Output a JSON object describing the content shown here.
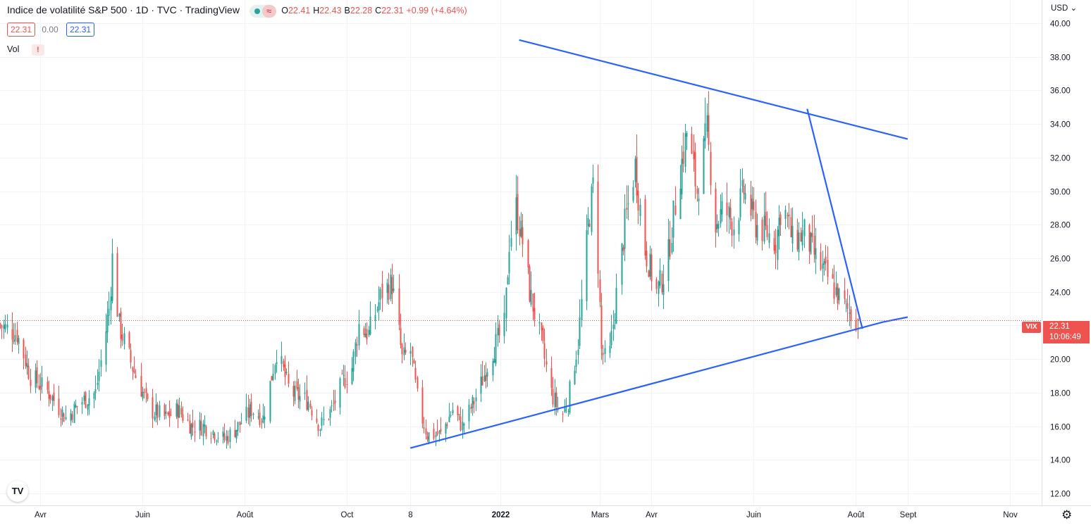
{
  "header": {
    "title": "Indice de volatilité S&P 500 · 1D · TVC · TradingView",
    "ohlc": [
      {
        "k": "O",
        "v": "22.41"
      },
      {
        "k": "H",
        "v": "22.43"
      },
      {
        "k": "B",
        "v": "22.28"
      },
      {
        "k": "C",
        "v": "22.31"
      },
      {
        "k": "",
        "v": "+0.99 (+4.64%)"
      }
    ],
    "sell_price": "22.31",
    "spread": "0.00",
    "buy_price": "22.31",
    "vol_label": "Vol",
    "vol_warning": "!",
    "currency": "USD ⌄",
    "logo_text": "TV"
  },
  "price_tag": {
    "symbol": "VIX",
    "price": "22.31",
    "countdown": "10:06:49"
  },
  "colors": {
    "up": "#26a69a",
    "down": "#ef5350",
    "trendline": "#2962ff",
    "grid": "#f0f3fa",
    "last_price": "#ef5350"
  },
  "chart_data": {
    "type": "candlestick",
    "symbol": "VIX",
    "timeframe": "1D",
    "y_axis": {
      "range": [
        11.5,
        40.5
      ],
      "ticks": [
        12,
        14,
        16,
        18,
        20,
        22,
        24,
        26,
        28,
        30,
        32,
        34,
        36,
        38,
        40
      ],
      "tick_labels": [
        "12.00",
        "14.00",
        "16.00",
        "18.00",
        "20.00",
        "22.00",
        "24.00",
        "26.00",
        "28.00",
        "30.00",
        "32.00",
        "34.00",
        "36.00",
        "38.00",
        "40.00"
      ]
    },
    "x_axis": {
      "range": [
        "2021-03-08",
        "2022-11-20"
      ],
      "ticks": [
        {
          "date": "2021-04-01",
          "label": "Avr"
        },
        {
          "date": "2021-06-01",
          "label": "Juin"
        },
        {
          "date": "2021-08-01",
          "label": "Août"
        },
        {
          "date": "2021-10-01",
          "label": "Oct"
        },
        {
          "date": "2021-11-08",
          "label": "8"
        },
        {
          "date": "2022-01-01",
          "label": "2022"
        },
        {
          "date": "2022-03-01",
          "label": "Mars"
        },
        {
          "date": "2022-04-01",
          "label": "Avr"
        },
        {
          "date": "2022-06-01",
          "label": "Juin"
        },
        {
          "date": "2022-08-01",
          "label": "Août"
        },
        {
          "date": "2022-09-01",
          "label": "Sept"
        },
        {
          "date": "2022-11-01",
          "label": "Nov"
        }
      ]
    },
    "close_path": [
      [
        "2021-03-08",
        22.0
      ],
      [
        "2021-03-18",
        21.5
      ],
      [
        "2021-03-26",
        19.0
      ],
      [
        "2021-04-06",
        18.0
      ],
      [
        "2021-04-16",
        16.5
      ],
      [
        "2021-04-26",
        17.5
      ],
      [
        "2021-05-04",
        18.0
      ],
      [
        "2021-05-12",
        23.0
      ],
      [
        "2021-05-14",
        26.0
      ],
      [
        "2021-05-18",
        22.0
      ],
      [
        "2021-05-26",
        19.5
      ],
      [
        "2021-06-05",
        17.0
      ],
      [
        "2021-06-15",
        16.5
      ],
      [
        "2021-06-22",
        17.0
      ],
      [
        "2021-06-30",
        16.0
      ],
      [
        "2021-07-08",
        16.0
      ],
      [
        "2021-07-16",
        15.5
      ],
      [
        "2021-07-20",
        15.2
      ],
      [
        "2021-07-28",
        16.0
      ],
      [
        "2021-08-05",
        17.0
      ],
      [
        "2021-08-12",
        16.5
      ],
      [
        "2021-08-20",
        20.5
      ],
      [
        "2021-08-28",
        18.0
      ],
      [
        "2021-09-08",
        17.5
      ],
      [
        "2021-09-15",
        16.0
      ],
      [
        "2021-09-22",
        17.0
      ],
      [
        "2021-09-28",
        18.5
      ],
      [
        "2021-10-04",
        19.5
      ],
      [
        "2021-10-08",
        22.0
      ],
      [
        "2021-10-14",
        21.5
      ],
      [
        "2021-10-22",
        24.0
      ],
      [
        "2021-10-28",
        24.5
      ],
      [
        "2021-11-03",
        20.0
      ],
      [
        "2021-11-08",
        20.5
      ],
      [
        "2021-11-13",
        17.0
      ],
      [
        "2021-11-18",
        15.5
      ],
      [
        "2021-11-26",
        15.5
      ],
      [
        "2021-12-03",
        17.0
      ],
      [
        "2021-12-09",
        16.0
      ],
      [
        "2021-12-16",
        17.5
      ],
      [
        "2021-12-20",
        18.5
      ],
      [
        "2021-12-27",
        20.5
      ],
      [
        "2022-01-03",
        22.0
      ],
      [
        "2022-01-06",
        27.0
      ],
      [
        "2022-01-10",
        29.0
      ],
      [
        "2022-01-14",
        27.0
      ],
      [
        "2022-01-18",
        24.0
      ],
      [
        "2022-01-24",
        21.5
      ],
      [
        "2022-01-31",
        18.0
      ],
      [
        "2022-02-06",
        16.5
      ],
      [
        "2022-02-10",
        17.5
      ],
      [
        "2022-02-16",
        21.0
      ],
      [
        "2022-02-22",
        28.0
      ],
      [
        "2022-02-26",
        31.0
      ],
      [
        "2022-03-02",
        20.5
      ],
      [
        "2022-03-06",
        19.5
      ],
      [
        "2022-03-10",
        23.0
      ],
      [
        "2022-03-16",
        28.0
      ],
      [
        "2022-03-22",
        31.5
      ],
      [
        "2022-03-28",
        26.5
      ],
      [
        "2022-04-04",
        24.0
      ],
      [
        "2022-04-10",
        25.5
      ],
      [
        "2022-04-16",
        30.0
      ],
      [
        "2022-04-22",
        33.5
      ],
      [
        "2022-04-28",
        30.0
      ],
      [
        "2022-05-04",
        33.5
      ],
      [
        "2022-05-09",
        28.0
      ],
      [
        "2022-05-14",
        29.0
      ],
      [
        "2022-05-20",
        28.0
      ],
      [
        "2022-05-26",
        30.0
      ],
      [
        "2022-06-02",
        28.0
      ],
      [
        "2022-06-09",
        27.5
      ],
      [
        "2022-06-14",
        27.0
      ],
      [
        "2022-06-18",
        29.5
      ],
      [
        "2022-06-24",
        27.0
      ],
      [
        "2022-07-01",
        27.5
      ],
      [
        "2022-07-08",
        26.0
      ],
      [
        "2022-07-14",
        25.0
      ],
      [
        "2022-07-20",
        24.0
      ],
      [
        "2022-07-26",
        23.0
      ],
      [
        "2022-08-02",
        22.31
      ]
    ],
    "trendlines": [
      {
        "name": "upper",
        "points": [
          [
            "2021-11-08",
            14.7
          ],
          [
            "2022-08-17",
            22.2
          ],
          [
            "2022-09-01",
            22.5
          ]
        ]
      },
      {
        "name": "lower",
        "points": [
          [
            "2022-01-12",
            39.0
          ],
          [
            "2022-09-01",
            33.1
          ]
        ]
      },
      {
        "name": "descending",
        "points": [
          [
            "2022-07-03",
            34.9
          ],
          [
            "2022-08-05",
            21.8
          ]
        ]
      }
    ],
    "last_price": 22.31
  }
}
